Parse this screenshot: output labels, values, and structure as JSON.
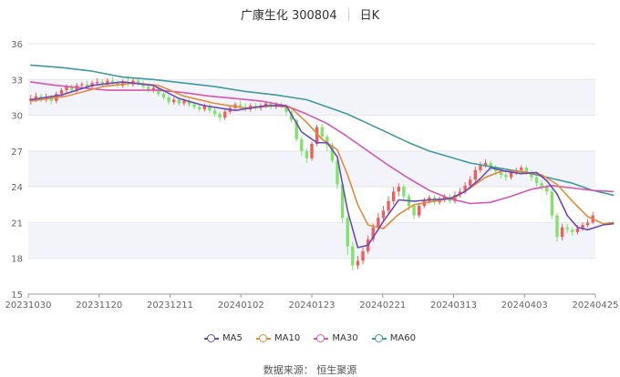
{
  "header": {
    "title": "广康生化 300804",
    "period": "日K"
  },
  "source": "数据来源：  恒生聚源",
  "colors": {
    "up": "#f45b5b",
    "down": "#7fe36b",
    "ma5": "#6c4ab8",
    "ma10": "#e38b3a",
    "ma30": "#d657b0",
    "ma60": "#3f9a9a",
    "grid": "#e6e6e6",
    "band": "#f3f4fa"
  },
  "chart_data": {
    "type": "candlestick",
    "title": "广康生化 300804",
    "ylim": [
      15,
      36
    ],
    "yticks": [
      15,
      18,
      21,
      24,
      27,
      30,
      33,
      36
    ],
    "xticks": [
      "20231030",
      "20231120",
      "20231211",
      "20240102",
      "20240123",
      "20240221",
      "20240313",
      "20240403",
      "20240425"
    ],
    "legend": {
      "placement": "bottom",
      "series": [
        "MA5",
        "MA10",
        "MA30",
        "MA60"
      ]
    },
    "candles": [
      [
        31.2,
        31.4,
        31.7,
        30.9
      ],
      [
        31.4,
        31.6,
        31.9,
        31.1
      ],
      [
        31.6,
        31.3,
        31.8,
        31.1
      ],
      [
        31.3,
        31.5,
        31.8,
        31.1
      ],
      [
        31.5,
        31.2,
        31.7,
        30.9
      ],
      [
        31.2,
        31.8,
        32.0,
        31.0
      ],
      [
        31.8,
        32.1,
        32.3,
        31.6
      ],
      [
        32.1,
        32.4,
        32.6,
        31.9
      ],
      [
        32.4,
        32.1,
        32.6,
        31.9
      ],
      [
        32.1,
        32.5,
        32.7,
        31.9
      ],
      [
        32.5,
        32.6,
        32.8,
        32.3
      ],
      [
        32.6,
        32.4,
        32.9,
        32.2
      ],
      [
        32.4,
        32.7,
        32.9,
        32.2
      ],
      [
        32.7,
        32.8,
        33.1,
        32.5
      ],
      [
        32.8,
        32.6,
        33.0,
        32.4
      ],
      [
        32.6,
        32.9,
        33.1,
        32.4
      ],
      [
        32.9,
        32.7,
        33.2,
        32.5
      ],
      [
        32.7,
        32.5,
        32.9,
        32.3
      ],
      [
        32.5,
        32.8,
        33.0,
        32.3
      ],
      [
        32.8,
        32.6,
        33.3,
        32.4
      ],
      [
        32.6,
        32.9,
        33.2,
        32.4
      ],
      [
        32.9,
        32.7,
        33.1,
        32.5
      ],
      [
        32.7,
        32.4,
        32.9,
        32.2
      ],
      [
        32.4,
        32.1,
        32.6,
        31.9
      ],
      [
        32.1,
        32.3,
        32.5,
        31.9
      ],
      [
        32.3,
        31.8,
        32.4,
        31.6
      ],
      [
        31.8,
        31.5,
        32.0,
        31.3
      ],
      [
        31.5,
        31.1,
        31.7,
        30.9
      ],
      [
        31.1,
        31.3,
        31.5,
        30.9
      ],
      [
        31.3,
        31.0,
        31.5,
        30.8
      ],
      [
        31.0,
        31.2,
        31.4,
        30.8
      ],
      [
        31.2,
        30.9,
        31.4,
        30.7
      ],
      [
        30.9,
        30.7,
        31.1,
        30.5
      ],
      [
        30.7,
        30.5,
        30.9,
        30.3
      ],
      [
        30.5,
        30.8,
        31.0,
        30.3
      ],
      [
        30.8,
        30.4,
        31.0,
        30.2
      ],
      [
        30.4,
        30.1,
        30.6,
        29.9
      ],
      [
        30.1,
        29.8,
        30.3,
        29.5
      ],
      [
        29.8,
        30.3,
        30.5,
        29.6
      ],
      [
        30.3,
        30.6,
        30.8,
        30.1
      ],
      [
        30.6,
        30.9,
        31.1,
        30.4
      ],
      [
        30.9,
        30.7,
        31.2,
        30.5
      ],
      [
        30.7,
        30.5,
        31.0,
        30.3
      ],
      [
        30.5,
        30.8,
        31.0,
        30.3
      ],
      [
        30.8,
        30.6,
        31.0,
        30.4
      ],
      [
        30.6,
        30.8,
        31.0,
        30.4
      ],
      [
        30.8,
        31.0,
        31.2,
        30.6
      ],
      [
        31.0,
        30.7,
        31.2,
        30.5
      ],
      [
        30.7,
        30.9,
        31.1,
        30.5
      ],
      [
        30.9,
        30.8,
        31.1,
        30.6
      ],
      [
        30.8,
        30.3,
        30.9,
        30.0
      ],
      [
        30.3,
        29.6,
        30.4,
        29.4
      ],
      [
        29.6,
        28.0,
        29.7,
        27.8
      ],
      [
        28.0,
        27.0,
        28.2,
        26.6
      ],
      [
        27.0,
        26.4,
        27.2,
        26.0
      ],
      [
        26.4,
        27.6,
        27.8,
        26.2
      ],
      [
        27.6,
        29.0,
        29.2,
        27.4
      ],
      [
        29.0,
        28.2,
        29.3,
        27.9
      ],
      [
        28.2,
        27.5,
        28.4,
        27.0
      ],
      [
        27.5,
        26.2,
        27.7,
        26.0
      ],
      [
        26.2,
        24.2,
        26.4,
        23.8
      ],
      [
        24.2,
        21.4,
        24.4,
        21.0
      ],
      [
        21.4,
        19.0,
        21.6,
        18.3
      ],
      [
        19.0,
        17.4,
        19.4,
        17.0
      ],
      [
        17.4,
        17.8,
        18.2,
        17.1
      ],
      [
        17.8,
        18.6,
        18.9,
        17.5
      ],
      [
        18.6,
        19.6,
        19.9,
        18.4
      ],
      [
        19.6,
        20.6,
        20.9,
        19.4
      ],
      [
        20.6,
        21.4,
        21.8,
        20.3
      ],
      [
        21.4,
        22.0,
        22.4,
        21.1
      ],
      [
        22.0,
        22.8,
        23.2,
        21.7
      ],
      [
        22.8,
        23.6,
        24.0,
        22.5
      ],
      [
        23.6,
        24.0,
        24.3,
        23.2
      ],
      [
        24.0,
        23.2,
        24.2,
        22.9
      ],
      [
        23.2,
        22.4,
        23.4,
        22.0
      ],
      [
        22.4,
        21.6,
        22.6,
        21.3
      ],
      [
        21.6,
        22.4,
        22.6,
        21.4
      ],
      [
        22.4,
        22.8,
        23.1,
        22.2
      ],
      [
        22.8,
        23.1,
        23.3,
        22.6
      ],
      [
        23.1,
        22.7,
        23.3,
        22.5
      ],
      [
        22.7,
        22.9,
        23.2,
        22.5
      ],
      [
        22.9,
        23.2,
        23.4,
        22.7
      ],
      [
        23.2,
        22.8,
        23.4,
        22.6
      ],
      [
        22.8,
        23.3,
        23.6,
        22.6
      ],
      [
        23.3,
        23.6,
        23.9,
        23.1
      ],
      [
        23.6,
        24.1,
        24.4,
        23.4
      ],
      [
        24.1,
        24.6,
        24.9,
        23.9
      ],
      [
        24.6,
        25.4,
        25.7,
        24.4
      ],
      [
        25.4,
        25.8,
        26.1,
        25.2
      ],
      [
        25.8,
        26.0,
        26.3,
        25.6
      ],
      [
        26.0,
        25.6,
        26.2,
        25.3
      ],
      [
        25.6,
        25.3,
        25.8,
        25.0
      ],
      [
        25.3,
        25.0,
        25.5,
        24.7
      ],
      [
        25.0,
        24.8,
        25.2,
        24.5
      ],
      [
        24.8,
        25.2,
        25.4,
        24.6
      ],
      [
        25.2,
        25.4,
        25.6,
        25.0
      ],
      [
        25.4,
        25.6,
        25.8,
        25.2
      ],
      [
        25.6,
        25.2,
        25.8,
        25.0
      ],
      [
        25.2,
        24.8,
        25.4,
        24.5
      ],
      [
        24.8,
        24.3,
        25.0,
        24.0
      ],
      [
        24.3,
        24.0,
        24.5,
        23.7
      ],
      [
        24.0,
        23.6,
        24.2,
        23.3
      ],
      [
        23.6,
        21.6,
        23.8,
        21.3
      ],
      [
        21.6,
        19.8,
        21.8,
        19.4
      ],
      [
        19.8,
        20.6,
        20.9,
        19.5
      ],
      [
        20.6,
        20.4,
        20.9,
        20.1
      ],
      [
        20.4,
        20.2,
        20.6,
        19.9
      ],
      [
        20.2,
        20.5,
        20.8,
        20.0
      ],
      [
        20.5,
        20.8,
        21.0,
        20.3
      ],
      [
        20.8,
        21.0,
        21.3,
        20.6
      ],
      [
        21.0,
        21.6,
        21.9,
        20.9
      ]
    ],
    "ma5": [
      [
        0,
        31.3
      ],
      [
        6,
        31.7
      ],
      [
        12,
        32.5
      ],
      [
        18,
        32.8
      ],
      [
        24,
        32.5
      ],
      [
        29,
        31.4
      ],
      [
        34,
        30.8
      ],
      [
        40,
        30.4
      ],
      [
        46,
        30.8
      ],
      [
        50,
        30.8
      ],
      [
        53,
        28.6
      ],
      [
        56,
        27.7
      ],
      [
        58,
        27.7
      ],
      [
        60,
        26.5
      ],
      [
        62,
        22.0
      ],
      [
        64,
        18.9
      ],
      [
        66,
        19.1
      ],
      [
        69,
        21.1
      ],
      [
        72,
        22.9
      ],
      [
        75,
        22.8
      ],
      [
        78,
        22.9
      ],
      [
        82,
        23.0
      ],
      [
        85,
        23.6
      ],
      [
        88,
        24.7
      ],
      [
        90,
        25.6
      ],
      [
        93,
        25.3
      ],
      [
        96,
        25.1
      ],
      [
        99,
        25.2
      ],
      [
        101,
        24.5
      ],
      [
        103,
        23.4
      ],
      [
        105,
        21.6
      ],
      [
        107,
        20.6
      ],
      [
        109,
        20.4
      ],
      [
        112,
        20.8
      ],
      [
        114,
        20.9
      ]
    ],
    "ma10": [
      [
        0,
        31.2
      ],
      [
        7,
        31.6
      ],
      [
        14,
        32.4
      ],
      [
        20,
        32.7
      ],
      [
        25,
        32.5
      ],
      [
        30,
        31.6
      ],
      [
        36,
        31.0
      ],
      [
        42,
        30.6
      ],
      [
        48,
        30.8
      ],
      [
        51,
        30.6
      ],
      [
        54,
        29.4
      ],
      [
        57,
        28.0
      ],
      [
        60,
        27.1
      ],
      [
        62,
        25.0
      ],
      [
        64,
        22.5
      ],
      [
        66,
        20.8
      ],
      [
        69,
        20.5
      ],
      [
        72,
        21.7
      ],
      [
        75,
        22.5
      ],
      [
        79,
        22.8
      ],
      [
        83,
        23.1
      ],
      [
        86,
        23.9
      ],
      [
        89,
        24.8
      ],
      [
        92,
        25.3
      ],
      [
        96,
        25.3
      ],
      [
        100,
        25.0
      ],
      [
        103,
        24.2
      ],
      [
        106,
        22.8
      ],
      [
        109,
        21.5
      ],
      [
        112,
        20.9
      ],
      [
        114,
        21.0
      ]
    ],
    "ma30": [
      [
        0,
        32.8
      ],
      [
        5,
        32.5
      ],
      [
        10,
        32.3
      ],
      [
        15,
        32.1
      ],
      [
        20,
        32.1
      ],
      [
        25,
        32.1
      ],
      [
        30,
        31.9
      ],
      [
        35,
        31.6
      ],
      [
        40,
        31.4
      ],
      [
        45,
        31.2
      ],
      [
        50,
        30.8
      ],
      [
        54,
        30.1
      ],
      [
        58,
        29.3
      ],
      [
        62,
        28.2
      ],
      [
        66,
        27.0
      ],
      [
        70,
        25.8
      ],
      [
        74,
        24.7
      ],
      [
        78,
        23.7
      ],
      [
        82,
        23.0
      ],
      [
        86,
        22.6
      ],
      [
        90,
        22.7
      ],
      [
        94,
        23.2
      ],
      [
        98,
        23.8
      ],
      [
        102,
        24.1
      ],
      [
        106,
        23.9
      ],
      [
        110,
        23.7
      ],
      [
        114,
        23.6
      ]
    ],
    "ma60": [
      [
        0,
        34.2
      ],
      [
        6,
        34.0
      ],
      [
        12,
        33.7
      ],
      [
        18,
        33.2
      ],
      [
        24,
        33.0
      ],
      [
        30,
        32.7
      ],
      [
        36,
        32.4
      ],
      [
        42,
        32.0
      ],
      [
        48,
        31.7
      ],
      [
        54,
        31.3
      ],
      [
        58,
        30.7
      ],
      [
        62,
        30.1
      ],
      [
        66,
        29.3
      ],
      [
        70,
        28.5
      ],
      [
        74,
        27.7
      ],
      [
        78,
        27.0
      ],
      [
        82,
        26.5
      ],
      [
        86,
        26.0
      ],
      [
        90,
        25.7
      ],
      [
        94,
        25.4
      ],
      [
        98,
        25.1
      ],
      [
        102,
        24.7
      ],
      [
        106,
        24.3
      ],
      [
        110,
        23.7
      ],
      [
        114,
        23.3
      ]
    ]
  }
}
